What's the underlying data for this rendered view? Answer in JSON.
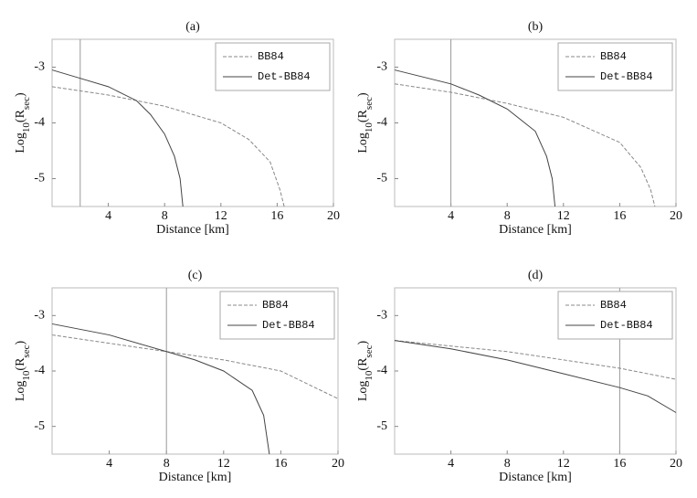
{
  "chart_data": [
    {
      "type": "line",
      "title": "(a)",
      "xlabel": "Distance [km]",
      "ylabel": [
        "Log",
        "10",
        "(R",
        "sec",
        ")"
      ],
      "xlim": [
        0,
        20
      ],
      "ylim": [
        -5.5,
        -2.5
      ],
      "xticks": [
        4,
        8,
        12,
        16,
        20
      ],
      "yticks": [
        -3,
        -4,
        -5
      ],
      "vline": 2,
      "legend": "upper right",
      "series": [
        {
          "name": "BB84",
          "color": "#888888",
          "dash": true,
          "x": [
            0,
            4,
            8,
            12,
            14,
            15.5,
            16.2,
            16.5
          ],
          "values": [
            -3.35,
            -3.5,
            -3.7,
            -4.0,
            -4.3,
            -4.7,
            -5.2,
            -5.5
          ]
        },
        {
          "name": "Det-BB84",
          "color": "#444444",
          "dash": false,
          "x": [
            0,
            2,
            4,
            6,
            7,
            8,
            8.7,
            9.1,
            9.3
          ],
          "values": [
            -3.05,
            -3.2,
            -3.35,
            -3.6,
            -3.85,
            -4.2,
            -4.6,
            -5.0,
            -5.5
          ]
        }
      ]
    },
    {
      "type": "line",
      "title": "(b)",
      "xlabel": "Distance [km]",
      "ylabel": [
        "Log",
        "10",
        "(R",
        "sec",
        ")"
      ],
      "xlim": [
        0,
        20
      ],
      "ylim": [
        -5.5,
        -2.5
      ],
      "xticks": [
        4,
        8,
        12,
        16,
        20
      ],
      "yticks": [
        -3,
        -4,
        -5
      ],
      "vline": 4,
      "legend": "upper right",
      "series": [
        {
          "name": "BB84",
          "color": "#888888",
          "dash": true,
          "x": [
            0,
            4,
            8,
            12,
            16,
            17.5,
            18.2,
            18.5
          ],
          "values": [
            -3.3,
            -3.45,
            -3.65,
            -3.9,
            -4.35,
            -4.8,
            -5.2,
            -5.5
          ]
        },
        {
          "name": "Det-BB84",
          "color": "#444444",
          "dash": false,
          "x": [
            0,
            4,
            6,
            8,
            10,
            10.8,
            11.2,
            11.4
          ],
          "values": [
            -3.05,
            -3.3,
            -3.5,
            -3.75,
            -4.15,
            -4.6,
            -5.0,
            -5.5
          ]
        }
      ]
    },
    {
      "type": "line",
      "title": "(c)",
      "xlabel": "Distance [km]",
      "ylabel": [
        "Log",
        "10",
        "(R",
        "sec",
        ")"
      ],
      "xlim": [
        0,
        20
      ],
      "ylim": [
        -5.5,
        -2.5
      ],
      "xticks": [
        4,
        8,
        12,
        16,
        20
      ],
      "yticks": [
        -3,
        -4,
        -5
      ],
      "vline": 8,
      "legend": "upper right",
      "series": [
        {
          "name": "BB84",
          "color": "#888888",
          "dash": true,
          "x": [
            0,
            4,
            8,
            12,
            16,
            20
          ],
          "values": [
            -3.35,
            -3.5,
            -3.65,
            -3.8,
            -4.0,
            -4.5
          ]
        },
        {
          "name": "Det-BB84",
          "color": "#444444",
          "dash": false,
          "x": [
            0,
            4,
            8,
            10,
            12,
            14,
            14.8,
            15.2
          ],
          "values": [
            -3.15,
            -3.35,
            -3.65,
            -3.8,
            -4.0,
            -4.35,
            -4.8,
            -5.5
          ]
        }
      ]
    },
    {
      "type": "line",
      "title": "(d)",
      "xlabel": "Distance [km]",
      "ylabel": [
        "Log",
        "10",
        "(R",
        "sec",
        ")"
      ],
      "xlim": [
        0,
        20
      ],
      "ylim": [
        -5.5,
        -2.5
      ],
      "xticks": [
        4,
        8,
        12,
        16,
        20
      ],
      "yticks": [
        -3,
        -4,
        -5
      ],
      "vline": 16,
      "legend": "upper right",
      "series": [
        {
          "name": "BB84",
          "color": "#888888",
          "dash": true,
          "x": [
            0,
            4,
            8,
            12,
            16,
            20
          ],
          "values": [
            -3.45,
            -3.55,
            -3.65,
            -3.8,
            -3.95,
            -4.15
          ]
        },
        {
          "name": "Det-BB84",
          "color": "#444444",
          "dash": false,
          "x": [
            0,
            4,
            8,
            12,
            16,
            18,
            20
          ],
          "values": [
            -3.45,
            -3.6,
            -3.8,
            -4.05,
            -4.3,
            -4.45,
            -4.75
          ]
        }
      ]
    }
  ]
}
